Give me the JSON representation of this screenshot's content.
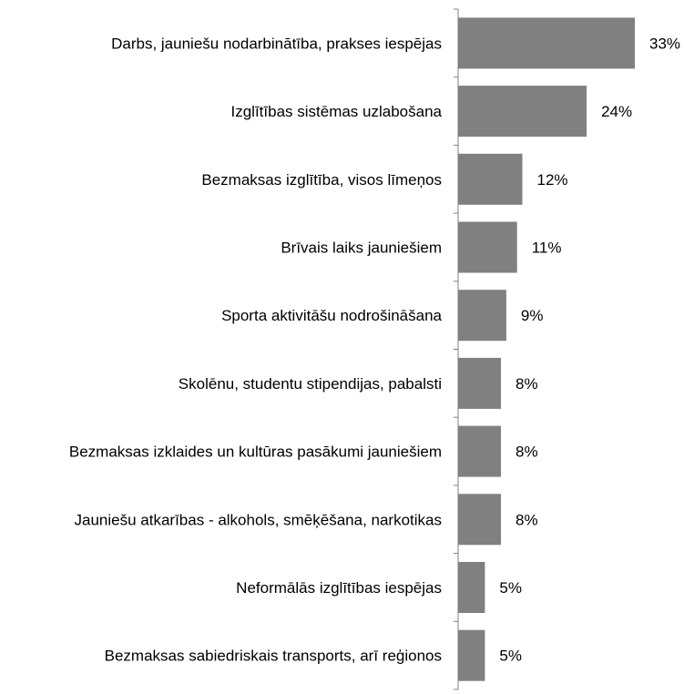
{
  "chart_data": {
    "type": "bar",
    "orientation": "horizontal",
    "title": "",
    "xlabel": "",
    "ylabel": "",
    "grid": false,
    "value_axis_visible": false,
    "bar_color": "#808080",
    "axis_color": "#808080",
    "value_suffix": "%",
    "xlim": [
      0,
      33
    ],
    "categories": [
      "Darbs, jauniešu nodarbinātība, prakses iespējas",
      "Izglītības sistēmas uzlabošana",
      "Bezmaksas izglītība, visos līmeņos",
      "Brīvais laiks jauniešiem",
      "Sporta aktivitāšu nodrošināšana",
      "Skolēnu, studentu stipendijas, pabalsti",
      "Bezmaksas izklaides un kultūras pasākumi jauniešiem",
      "Jauniešu atkarības - alkohols, smēķēšana, narkotikas",
      "Neformālās izglītības iespējas",
      "Bezmaksas sabiedriskais transports, arī reģionos"
    ],
    "values": [
      33,
      24,
      12,
      11,
      9,
      8,
      8,
      8,
      5,
      5
    ],
    "value_labels": [
      "33%",
      "24%",
      "12%",
      "11%",
      "9%",
      "8%",
      "8%",
      "8%",
      "5%",
      "5%"
    ]
  }
}
